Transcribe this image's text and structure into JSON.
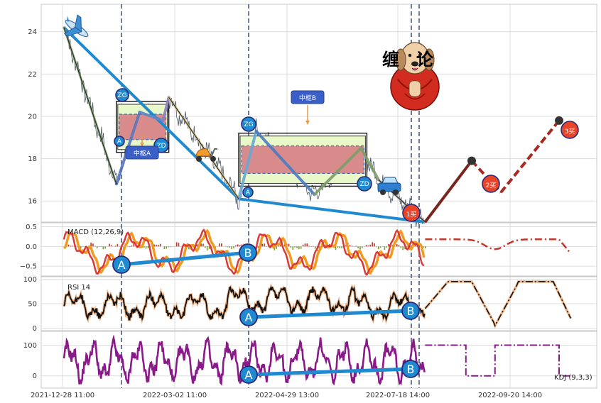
{
  "chart_data": {
    "type": "line",
    "x_ticks": [
      "2021-12-28 11:00",
      "2022-03-02 11:00",
      "2022-04-29 13:00",
      "2022-07-18 14:00",
      "2022-09-20 14:00"
    ],
    "panels": {
      "price": {
        "y_ticks": [
          "24",
          "22",
          "20",
          "18",
          "16"
        ],
        "ylim": [
          15.0,
          25.3
        ],
        "bi_points": [
          [
            0,
            24.2
          ],
          [
            9,
            16.8
          ],
          [
            13,
            20.2
          ],
          [
            17,
            19.8
          ],
          [
            18,
            20.9
          ],
          [
            30,
            16.1
          ],
          [
            33,
            19.3
          ],
          [
            43,
            16.3
          ],
          [
            51,
            18.5
          ],
          [
            54,
            17.0
          ],
          [
            62,
            15.0
          ]
        ],
        "trend_line": [
          [
            0,
            24.2
          ],
          [
            30,
            16.1
          ],
          [
            62,
            15.0
          ]
        ],
        "forecast": [
          [
            62,
            15.0
          ],
          [
            70,
            17.9
          ],
          [
            75,
            16.4
          ],
          [
            85,
            19.8
          ]
        ],
        "zhongshu": [
          {
            "x0": 9,
            "x1": 18,
            "y_top": 20.1,
            "y_bottom": 18.9,
            "label": "中枢A"
          },
          {
            "x0": 30,
            "x1": 52,
            "y_top": 18.6,
            "y_bottom": 17.3,
            "label": "中枢B"
          }
        ],
        "markers": [
          "A",
          "ZG",
          "ZD",
          "A",
          "ZG",
          "ZD",
          "1买",
          "2买",
          "3买"
        ],
        "logo_text": "缠论"
      },
      "macd": {
        "label": "MACD (12,26,9)",
        "y_ticks": [
          "0.5",
          "0.0",
          "−0.5"
        ],
        "ylim": [
          -0.75,
          0.6
        ],
        "markers": [
          "A",
          "B"
        ]
      },
      "rsi": {
        "label": "RSI 14",
        "y_ticks": [
          "100",
          "50",
          "0"
        ],
        "ylim": [
          -5,
          105
        ],
        "markers": [
          "A",
          "B"
        ]
      },
      "kdj": {
        "label": "KDJ (9,3,3)",
        "y_ticks": [
          "100",
          "0"
        ],
        "ylim": [
          -40,
          145
        ],
        "markers": [
          "A",
          "B"
        ]
      }
    },
    "grid": true
  }
}
